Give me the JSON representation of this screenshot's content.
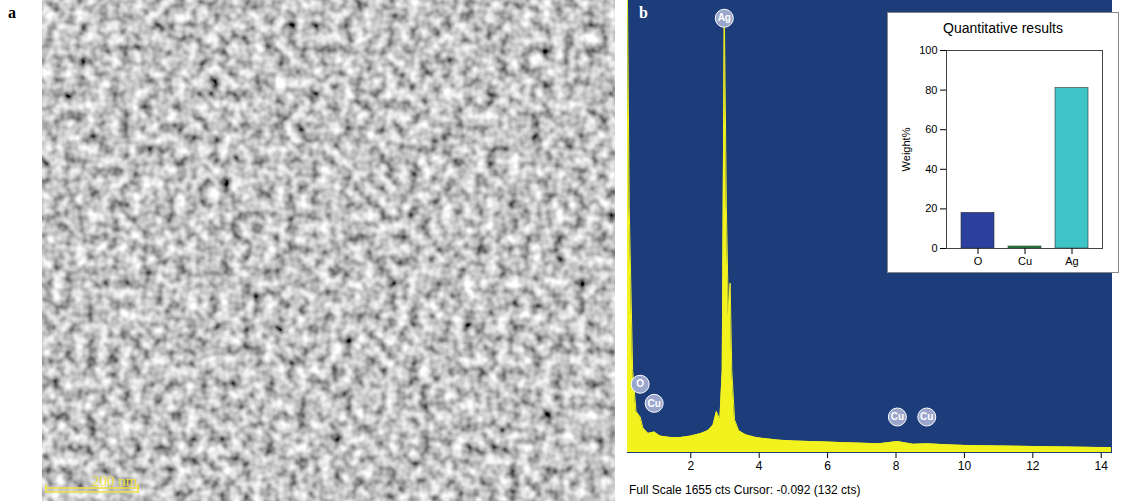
{
  "panel_labels": [
    "a",
    "b"
  ],
  "image": {
    "type": "micrograph",
    "scale_bar": "200 nm"
  },
  "chart_data": [
    {
      "type": "area",
      "x": [
        0.15,
        0.2,
        0.3,
        0.4,
        0.52,
        0.6,
        0.75,
        0.93,
        1.1,
        1.4,
        1.7,
        2.0,
        2.3,
        2.5,
        2.65,
        2.75,
        2.85,
        2.92,
        2.98,
        3.04,
        3.1,
        3.15,
        3.2,
        3.28,
        3.4,
        3.6,
        3.9,
        4.2,
        4.6,
        5.0,
        5.5,
        6.0,
        6.5,
        7.0,
        7.5,
        8.04,
        8.5,
        8.9,
        9.5,
        10,
        11,
        12,
        13,
        14,
        14.3
      ],
      "values": [
        1655,
        900,
        300,
        150,
        130,
        90,
        70,
        75,
        60,
        55,
        55,
        60,
        70,
        80,
        100,
        150,
        120,
        300,
        1620,
        900,
        500,
        620,
        300,
        120,
        80,
        65,
        55,
        50,
        45,
        42,
        40,
        38,
        36,
        34,
        32,
        40,
        30,
        32,
        28,
        26,
        24,
        22,
        20,
        18,
        18
      ],
      "color": "#f2f21e",
      "xlim": [
        0.15,
        14.3
      ],
      "xticks": [
        2,
        4,
        6,
        8,
        10,
        12,
        14
      ],
      "ylim": [
        0,
        1655
      ],
      "yticks": [],
      "tick_labels": "x",
      "annotations": [
        {
          "text": "Ag",
          "x": 2.98,
          "y": 1590
        },
        {
          "text": "O",
          "x": 0.52,
          "y": 250
        },
        {
          "text": "Cu",
          "x": 0.93,
          "y": 180
        },
        {
          "text": "Cu",
          "x": 8.04,
          "y": 130
        },
        {
          "text": "Cu",
          "x": 8.9,
          "y": 130
        }
      ],
      "caption": "Full Scale 1655 cts Cursor: -0.092 (132 cts)"
    },
    {
      "type": "bar",
      "title": "Quantitative results",
      "y_label": "Weight%",
      "categories": [
        "O",
        "Cu",
        "Ag"
      ],
      "values": [
        18,
        1,
        81
      ],
      "colors": [
        "#2a3f9e",
        "#1e8a3c",
        "#3fc4c8"
      ],
      "ylim": [
        0,
        100
      ],
      "yticks": [
        0,
        20,
        40,
        60,
        80,
        100
      ]
    }
  ]
}
